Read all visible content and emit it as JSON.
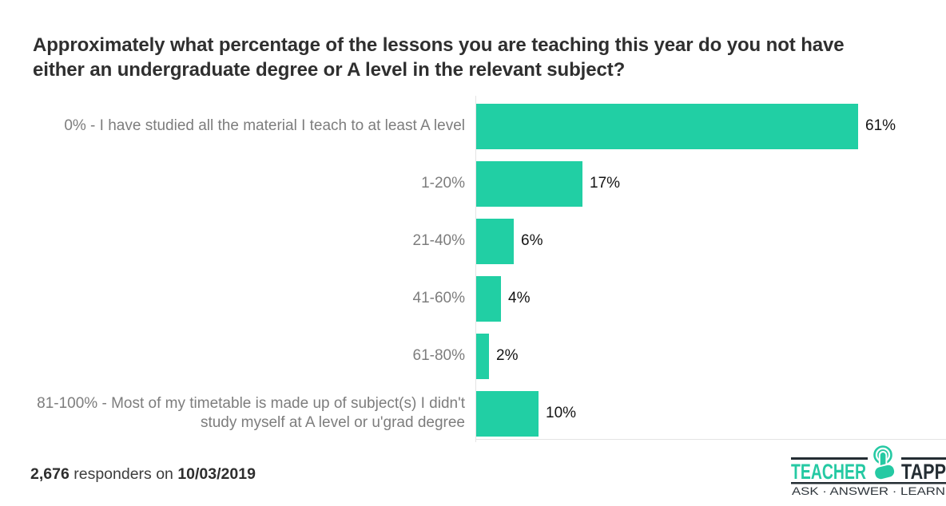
{
  "title": "Approximately what percentage of the lessons you are teaching this year do you not have either an undergraduate degree or A level in the relevant subject?",
  "chart_data": {
    "type": "bar",
    "orientation": "horizontal",
    "categories": [
      "0% - I have studied all the material I teach to at least A level",
      "1-20%",
      "21-40%",
      "41-60%",
      "61-80%",
      "81-100% - Most of my timetable is made up of subject(s) I didn't study myself at A level or u'grad degree"
    ],
    "values": [
      61,
      17,
      6,
      4,
      2,
      10
    ],
    "unit": "%",
    "xlim": [
      0,
      65
    ],
    "grid": false,
    "legend": false,
    "value_labels_position": "end-of-bar",
    "bar_color": "#21CFA4",
    "category_label_color": "#7d7d7d",
    "value_label_color": "#141414",
    "axis_line_color": "#e4e4e4"
  },
  "footer": {
    "responders_count": "2,676",
    "middle_text": "responders on",
    "date": "10/03/2019"
  },
  "logo": {
    "brand_left": "TEACHER",
    "brand_right": "TAPP",
    "tagline": "ASK · ANSWER · LEARN",
    "teal_color": "#25C9A3",
    "dark_color": "#242D33",
    "icon": "tap-hand-icon"
  }
}
